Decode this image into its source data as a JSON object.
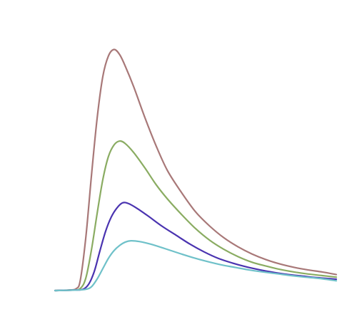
{
  "chart_data": {
    "type": "line",
    "title": "",
    "xlabel": "",
    "ylabel": "",
    "grid": false,
    "axes_visible": false,
    "legend": "none",
    "xlim": [
      0,
      10
    ],
    "ylim": [
      0,
      10
    ],
    "series": [
      {
        "color": "#a87878",
        "points": [
          [
            0.0,
            0.0
          ],
          [
            0.5,
            0.02
          ],
          [
            0.75,
            0.07
          ],
          [
            0.9,
            0.4
          ],
          [
            1.1,
            2.1
          ],
          [
            1.3,
            4.5
          ],
          [
            1.5,
            6.7
          ],
          [
            1.7,
            8.3
          ],
          [
            1.9,
            9.1
          ],
          [
            2.1,
            9.35
          ],
          [
            2.3,
            9.15
          ],
          [
            2.5,
            8.7
          ],
          [
            2.8,
            7.9
          ],
          [
            3.2,
            6.7
          ],
          [
            3.6,
            5.6
          ],
          [
            4.0,
            4.65
          ],
          [
            4.5,
            3.8
          ],
          [
            5.0,
            3.05
          ],
          [
            5.5,
            2.5
          ],
          [
            6.0,
            2.05
          ],
          [
            6.5,
            1.7
          ],
          [
            7.0,
            1.42
          ],
          [
            7.5,
            1.2
          ],
          [
            8.0,
            1.03
          ],
          [
            8.5,
            0.9
          ],
          [
            9.0,
            0.8
          ],
          [
            9.5,
            0.72
          ],
          [
            10.0,
            0.62
          ]
        ]
      },
      {
        "color": "#8aac62",
        "points": [
          [
            0.0,
            0.0
          ],
          [
            0.6,
            0.02
          ],
          [
            0.9,
            0.08
          ],
          [
            1.1,
            0.5
          ],
          [
            1.3,
            1.6
          ],
          [
            1.5,
            3.0
          ],
          [
            1.7,
            4.3
          ],
          [
            1.9,
            5.2
          ],
          [
            2.1,
            5.65
          ],
          [
            2.3,
            5.8
          ],
          [
            2.5,
            5.7
          ],
          [
            2.8,
            5.35
          ],
          [
            3.2,
            4.75
          ],
          [
            3.6,
            4.1
          ],
          [
            4.0,
            3.55
          ],
          [
            4.5,
            2.95
          ],
          [
            5.0,
            2.4
          ],
          [
            5.5,
            1.95
          ],
          [
            6.0,
            1.6
          ],
          [
            6.5,
            1.32
          ],
          [
            7.0,
            1.1
          ],
          [
            7.5,
            0.95
          ],
          [
            8.0,
            0.82
          ],
          [
            8.5,
            0.72
          ],
          [
            9.0,
            0.64
          ],
          [
            9.5,
            0.58
          ],
          [
            10.0,
            0.52
          ]
        ]
      },
      {
        "color": "#4a33b0",
        "points": [
          [
            0.0,
            0.0
          ],
          [
            0.7,
            0.02
          ],
          [
            1.0,
            0.05
          ],
          [
            1.2,
            0.25
          ],
          [
            1.4,
            0.75
          ],
          [
            1.6,
            1.55
          ],
          [
            1.8,
            2.3
          ],
          [
            2.0,
            2.85
          ],
          [
            2.2,
            3.2
          ],
          [
            2.4,
            3.4
          ],
          [
            2.6,
            3.38
          ],
          [
            2.9,
            3.2
          ],
          [
            3.3,
            2.9
          ],
          [
            3.8,
            2.5
          ],
          [
            4.3,
            2.15
          ],
          [
            4.8,
            1.8
          ],
          [
            5.3,
            1.5
          ],
          [
            5.8,
            1.25
          ],
          [
            6.3,
            1.07
          ],
          [
            6.8,
            0.92
          ],
          [
            7.3,
            0.8
          ],
          [
            7.8,
            0.7
          ],
          [
            8.3,
            0.62
          ],
          [
            8.8,
            0.56
          ],
          [
            9.3,
            0.5
          ],
          [
            10.0,
            0.44
          ]
        ]
      },
      {
        "color": "#6fc1c9",
        "points": [
          [
            0.0,
            0.0
          ],
          [
            0.8,
            0.02
          ],
          [
            1.1,
            0.05
          ],
          [
            1.3,
            0.15
          ],
          [
            1.5,
            0.45
          ],
          [
            1.7,
            0.85
          ],
          [
            1.9,
            1.25
          ],
          [
            2.1,
            1.55
          ],
          [
            2.3,
            1.75
          ],
          [
            2.5,
            1.88
          ],
          [
            2.7,
            1.93
          ],
          [
            3.0,
            1.9
          ],
          [
            3.4,
            1.8
          ],
          [
            3.9,
            1.63
          ],
          [
            4.4,
            1.45
          ],
          [
            4.9,
            1.28
          ],
          [
            5.4,
            1.13
          ],
          [
            5.9,
            1.0
          ],
          [
            6.4,
            0.9
          ],
          [
            6.9,
            0.8
          ],
          [
            7.4,
            0.72
          ],
          [
            7.9,
            0.65
          ],
          [
            8.4,
            0.58
          ],
          [
            8.9,
            0.52
          ],
          [
            9.4,
            0.47
          ],
          [
            10.0,
            0.38
          ]
        ]
      }
    ]
  }
}
